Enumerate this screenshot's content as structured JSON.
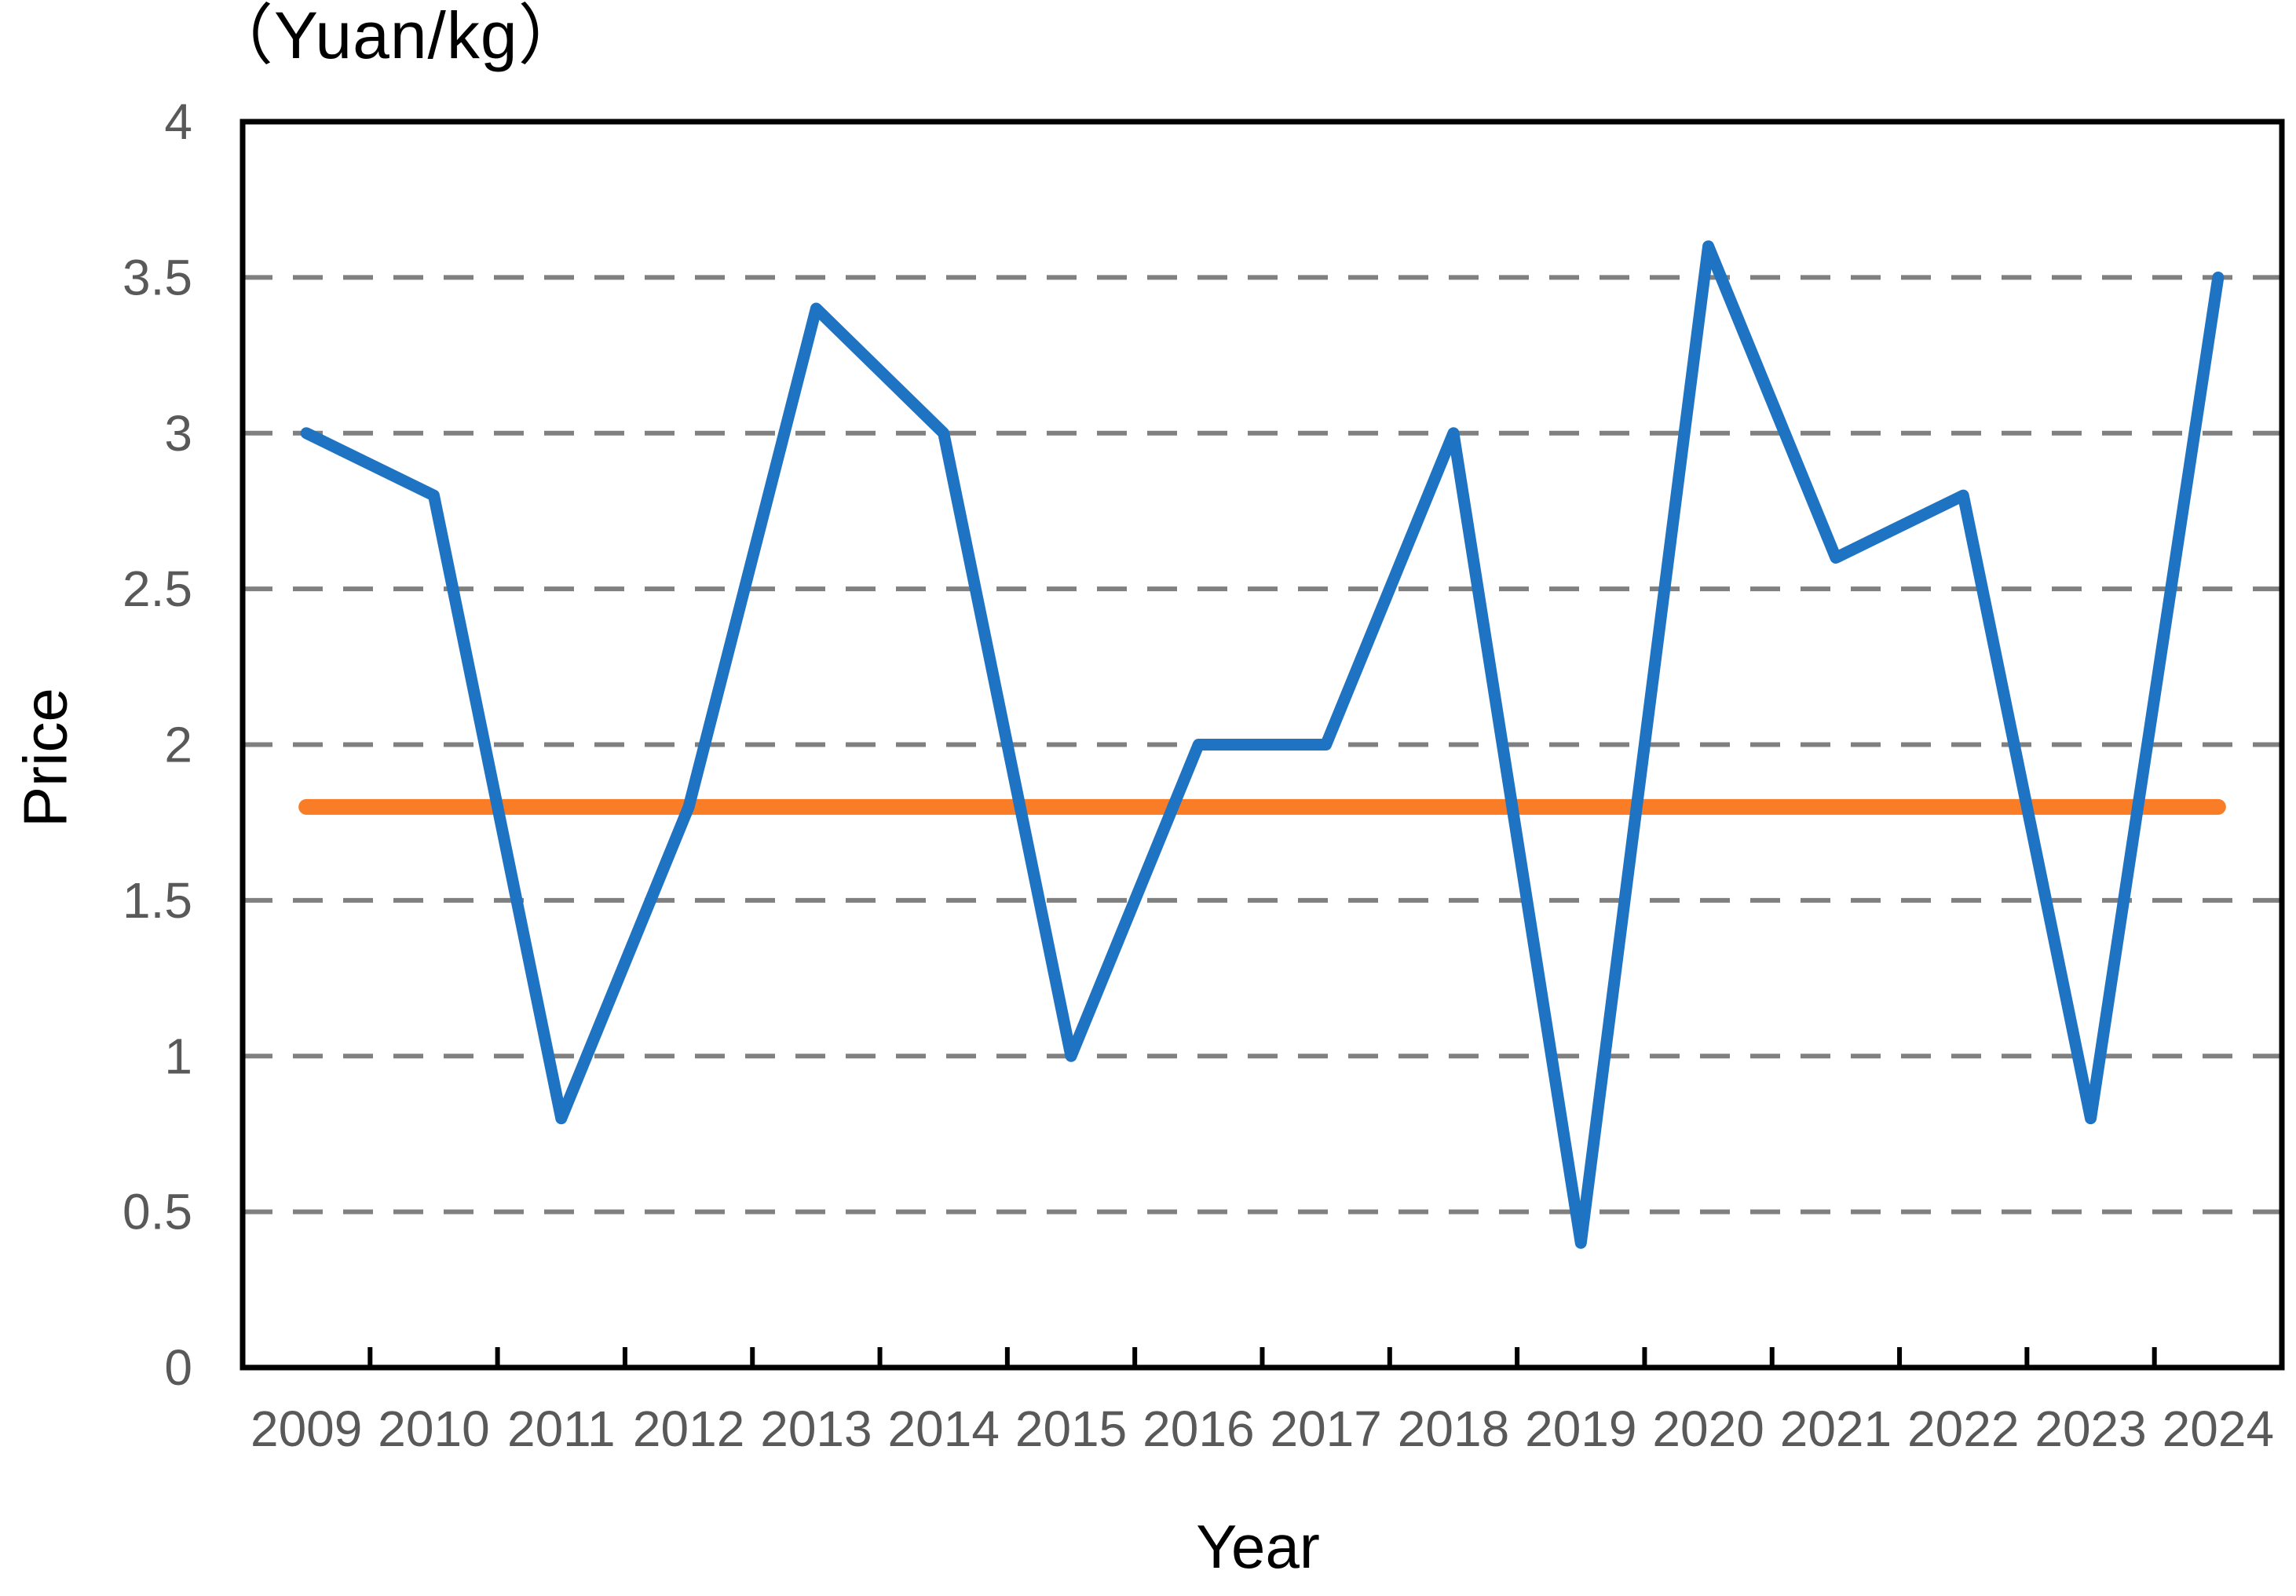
{
  "chart_data": {
    "type": "line",
    "title": "（Yuan/kg）",
    "xlabel": "Year",
    "ylabel": "Price",
    "categories": [
      "2009",
      "2010",
      "2011",
      "2012",
      "2013",
      "2014",
      "2015",
      "2016",
      "2017",
      "2018",
      "2019",
      "2020",
      "2021",
      "2022",
      "2023",
      "2024"
    ],
    "series": [
      {
        "id": "blue-line",
        "color": "#1E73C2",
        "stroke_width": 15,
        "values": [
          3.0,
          2.8,
          0.8,
          1.8,
          3.4,
          3.0,
          1.0,
          2.0,
          2.0,
          3.0,
          0.4,
          3.6,
          2.6,
          2.8,
          0.8,
          3.5
        ]
      },
      {
        "id": "orange-line",
        "color": "#F97D27",
        "stroke_width": 20,
        "values": [
          1.8,
          1.8,
          1.8,
          1.8,
          1.8,
          1.8,
          1.8,
          1.8,
          1.8,
          1.8,
          1.8,
          1.8,
          1.8,
          1.8,
          1.8,
          1.8
        ]
      }
    ],
    "ylim": [
      0,
      4
    ],
    "ytick_values": [
      0,
      0.5,
      1,
      1.5,
      2,
      2.5,
      3,
      3.5,
      4
    ],
    "ytick_labels": [
      "0",
      "0.5",
      "1",
      "1.5",
      "2",
      "2.5",
      "3",
      "3.5",
      "4"
    ],
    "grid": "horizontal-dashed",
    "legend": "none",
    "colors": {
      "gridline": "#808080",
      "axis_border": "#000000",
      "tick_label": "#595959",
      "text": "#000000",
      "background": "#ffffff"
    }
  }
}
